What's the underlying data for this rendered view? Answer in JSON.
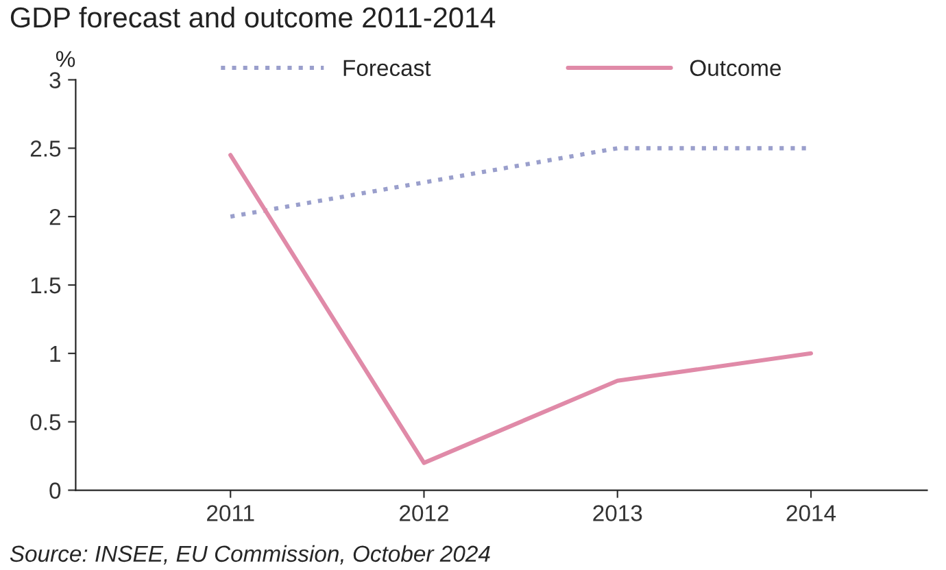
{
  "chart_data": {
    "type": "line",
    "title": "GDP forecast and outcome 2011-2014",
    "ylabel": "%",
    "categories": [
      "2011",
      "2012",
      "2013",
      "2014"
    ],
    "series": [
      {
        "name": "Forecast",
        "color": "#9a9fcc",
        "values": [
          2,
          2.25,
          2.5,
          2.5
        ],
        "line_style": "dotted"
      },
      {
        "name": "Outcome",
        "color": "#e08aa8",
        "values": [
          2.45,
          0.2,
          0.8,
          1.0
        ],
        "line_style": "solid"
      }
    ],
    "ylim": [
      0,
      3
    ],
    "yticks": [
      0,
      0.5,
      1,
      1.5,
      2,
      2.5,
      3
    ],
    "grid": false,
    "legend": "top",
    "marker": "none",
    "annotations": [
      "Source: INSEE, EU Commission, October 2024"
    ]
  }
}
